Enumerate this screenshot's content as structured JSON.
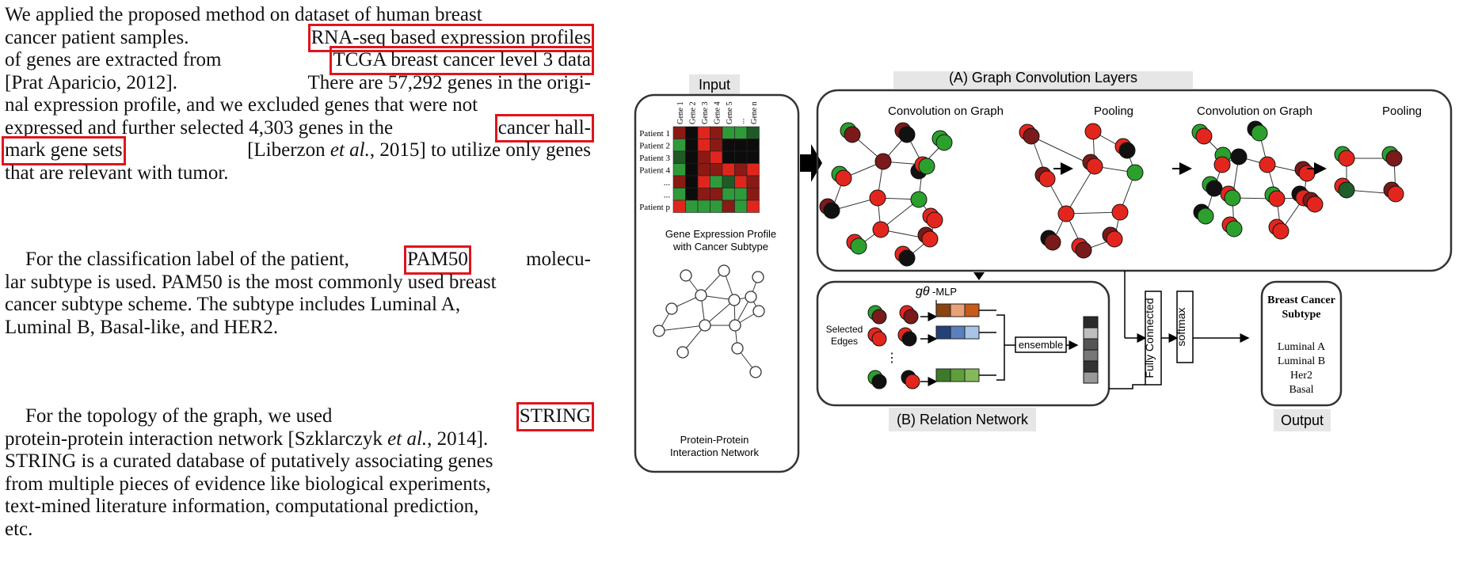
{
  "text": {
    "p1": [
      [
        "We applied the proposed method on dataset of human breast"
      ],
      [
        "cancer patient samples.",
        "RNA-seq based expression profiles"
      ],
      [
        "of genes are extracted from",
        "TCGA breast cancer level 3 data"
      ],
      [
        "[Prat Aparicio, 2012].",
        "There are 57,292 genes in the origi-"
      ],
      [
        "nal expression profile, and we excluded genes that were not"
      ],
      [
        "expressed and further selected 4,303 genes in the",
        "cancer hall-"
      ],
      [
        "mark gene sets",
        "[Liberzon et al., 2015] to utilize only genes"
      ],
      [
        "that are relevant with tumor."
      ]
    ],
    "p2": [
      [
        "For the classification label of the patient,",
        "PAM50",
        "molecu-"
      ],
      [
        "lar subtype is used. PAM50 is the most commonly used breast"
      ],
      [
        "cancer subtype scheme. The subtype includes Luminal A,"
      ],
      [
        "Luminal B, Basal-like, and HER2."
      ]
    ],
    "p3": [
      [
        "For the topology of the graph, we used",
        "STRING"
      ],
      [
        "protein-protein interaction network [Szklarczyk et al., 2014]."
      ],
      [
        "STRING is a curated database of putatively associating genes"
      ],
      [
        "from multiple pieces of evidence like biological experiments,"
      ],
      [
        "text-mined literature information, computational prediction,"
      ],
      [
        "etc."
      ]
    ],
    "highlights": [
      "RNA-seq based expression profiles",
      "TCGA breast cancer level 3 data",
      "cancer hall-",
      "mark gene sets",
      "PAM50",
      "STRING"
    ]
  },
  "figure": {
    "input_title": "Input",
    "gcn_title": "(A) Graph Convolution Layers",
    "rn_title": "(B) Relation Network",
    "output_title": "Output",
    "gene_headers": [
      "Gene 1",
      "Gene 2",
      "Gene 3",
      "Gene 4",
      "Gene 5",
      "...",
      "Gene n"
    ],
    "patients": [
      "Patient 1",
      "Patient 2",
      "Patient 3",
      "Patient 4",
      "...",
      "...",
      "Patient p"
    ],
    "expr_caption_1": "Gene Expression Profile",
    "expr_caption_2": "with Cancer Subtype",
    "ppi_caption_1": "Protein-Protein",
    "ppi_caption_2": "Interaction Network",
    "stage_labels": [
      "Convolution on Graph",
      "Pooling",
      "Convolution on Graph",
      "Pooling"
    ],
    "mlp_label": "-MLP",
    "selected_edges_1": "Selected",
    "selected_edges_2": "Edges",
    "ensemble": "ensemble",
    "fully_connected": "Fully Connected",
    "softmax": "softmax",
    "output_heading_1": "Breast Cancer",
    "output_heading_2": "Subtype",
    "subtypes": [
      "Luminal A",
      "Luminal B",
      "Her2",
      "Basal"
    ],
    "colors": {
      "highlight": "#e0141c",
      "green": "#2ca02c",
      "red": "#e3261d",
      "darkred": "#7a1a1a",
      "black": "#111111"
    }
  }
}
